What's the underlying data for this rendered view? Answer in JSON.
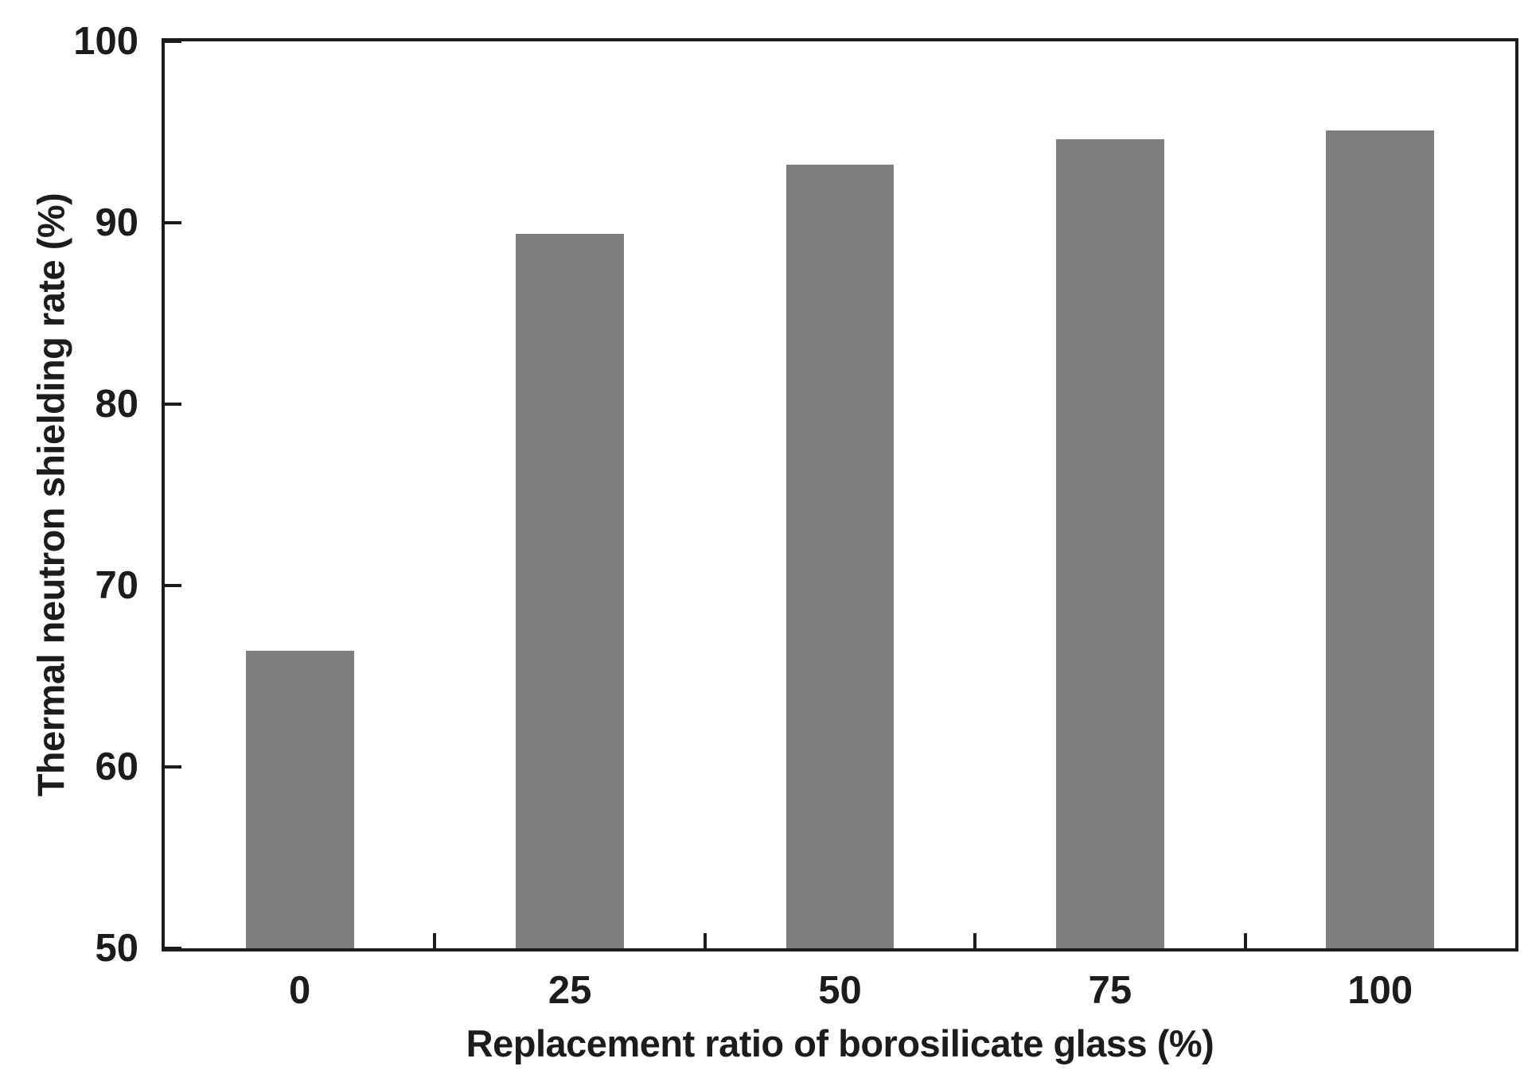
{
  "chart_data": {
    "type": "bar",
    "title": "",
    "categories": [
      "0",
      "25",
      "50",
      "75",
      "100"
    ],
    "values": [
      66.4,
      89.4,
      93.2,
      94.6,
      95.1
    ],
    "xlabel": "Replacement ratio of borosilicate glass (%)",
    "ylabel": "Thermal neutron shielding rate (%)",
    "ylim": [
      50,
      100
    ],
    "yticks": [
      50,
      60,
      70,
      80,
      90,
      100
    ],
    "grid": false,
    "legend_position": "none",
    "bar_color": "#7e7e7e",
    "axis_color": "#1c1c1c",
    "background_color": "#ffffff",
    "bar_width_fraction": 0.4
  }
}
